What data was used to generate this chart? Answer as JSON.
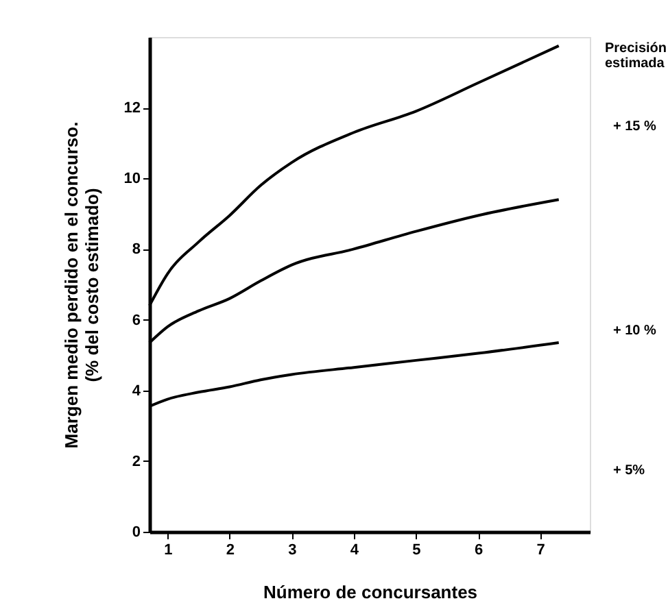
{
  "chart_data": {
    "type": "line",
    "xlabel": "Número de concursantes",
    "ylabel": [
      "Margen medio perdido en el concurso.",
      "(% del costo estimado)"
    ],
    "x": [
      0.71,
      1,
      1.5,
      2,
      2.5,
      3,
      4,
      5,
      6,
      7.3
    ],
    "series": [
      {
        "color": "#000000",
        "values": [
          6.4,
          7.3,
          8.2,
          8.95,
          9.8,
          10.45,
          11.3,
          11.9,
          12.7,
          13.75
        ]
      },
      {
        "color": "#000000",
        "values": [
          5.35,
          5.8,
          6.25,
          6.6,
          7.1,
          7.55,
          8.0,
          8.5,
          8.95,
          9.4
        ]
      },
      {
        "color": "#000000",
        "values": [
          3.55,
          3.75,
          3.95,
          4.1,
          4.3,
          4.45,
          4.65,
          4.85,
          5.05,
          5.35
        ]
      }
    ],
    "annotations": [
      "Precisión\nestimada",
      "+ 15 %",
      "+ 10 %",
      "+ 5%"
    ],
    "xlim": [
      0.71,
      7.8
    ],
    "ylim": [
      0,
      14
    ],
    "xticks": [
      1,
      2,
      3,
      4,
      5,
      6,
      7
    ],
    "yticks": [
      0,
      2,
      4,
      6,
      8,
      10,
      12
    ],
    "grid": false,
    "marker": "none",
    "line_style": "solid"
  }
}
